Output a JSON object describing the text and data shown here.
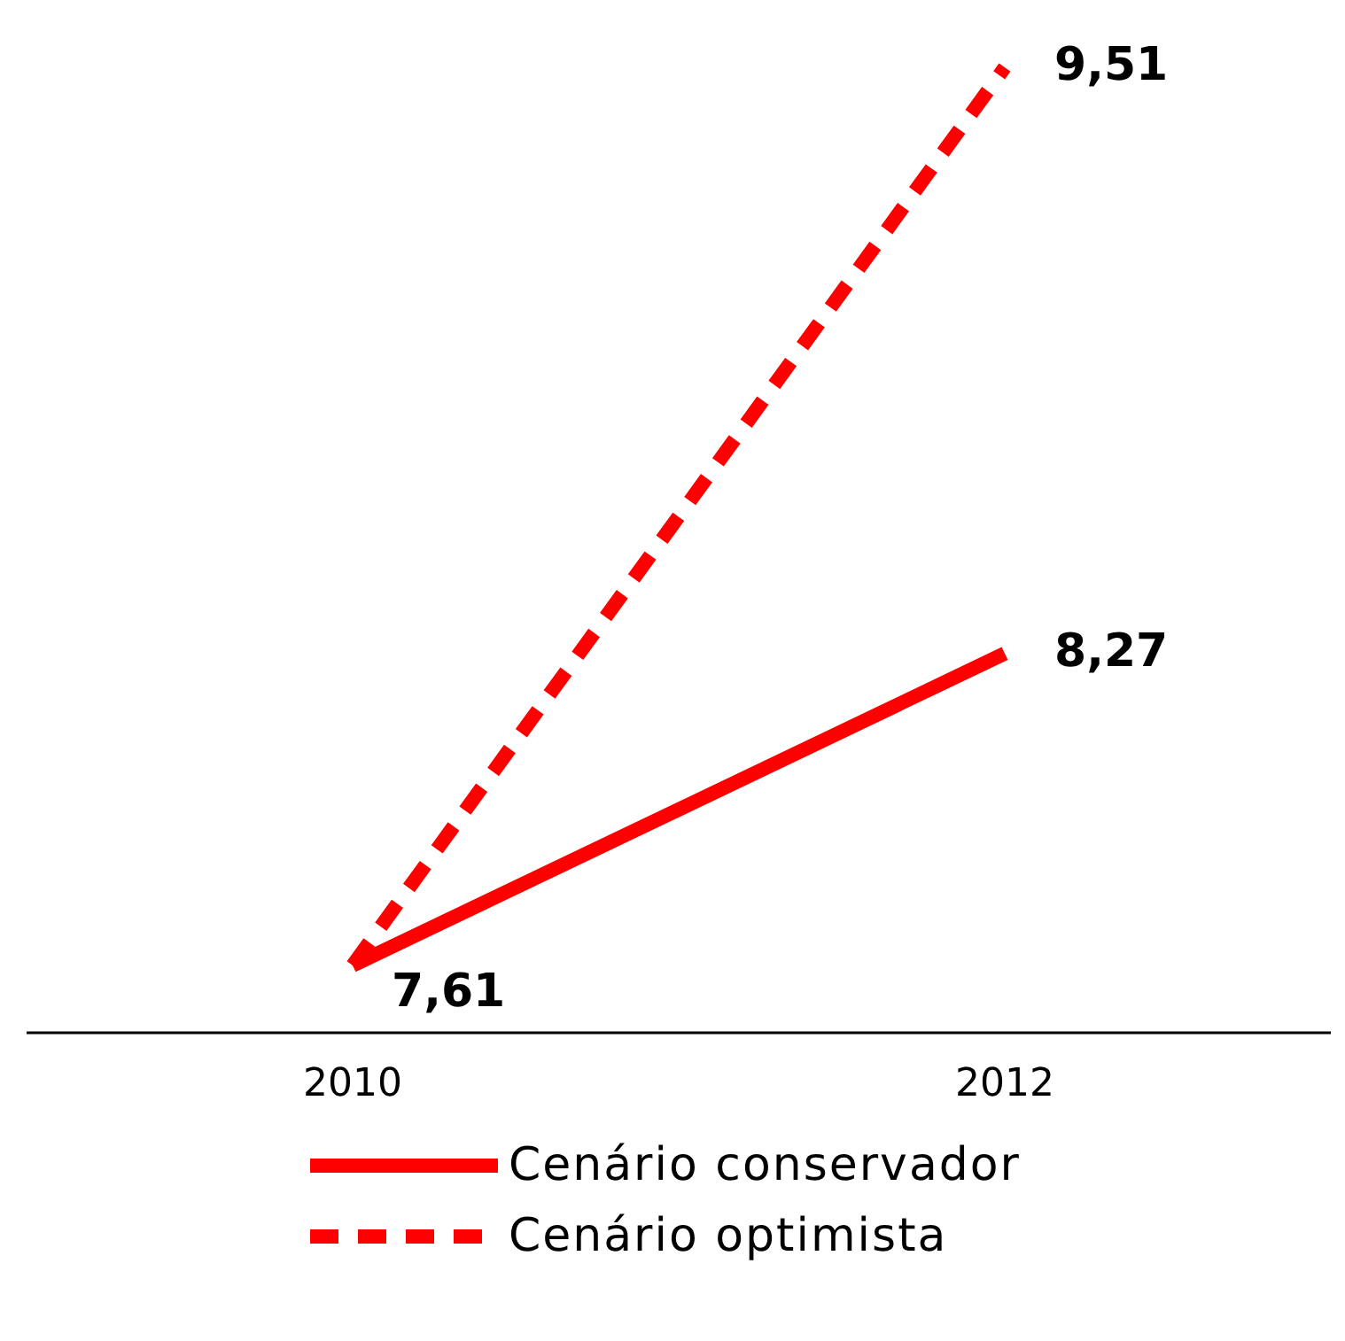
{
  "chart_data": {
    "type": "line",
    "categories": [
      "2010",
      "2012"
    ],
    "legend": "bottom",
    "grid": false,
    "series": [
      {
        "name": "Cenário conservador",
        "color": "#ff0000",
        "line_style": "solid",
        "values": [
          7.61,
          8.27
        ],
        "value_labels": [
          "7,61",
          "8,27"
        ]
      },
      {
        "name": "Cenário optimista",
        "color": "#ff0000",
        "line_style": "dashed",
        "values": [
          7.61,
          9.51
        ],
        "value_labels": [
          null,
          "9,51"
        ]
      }
    ]
  }
}
